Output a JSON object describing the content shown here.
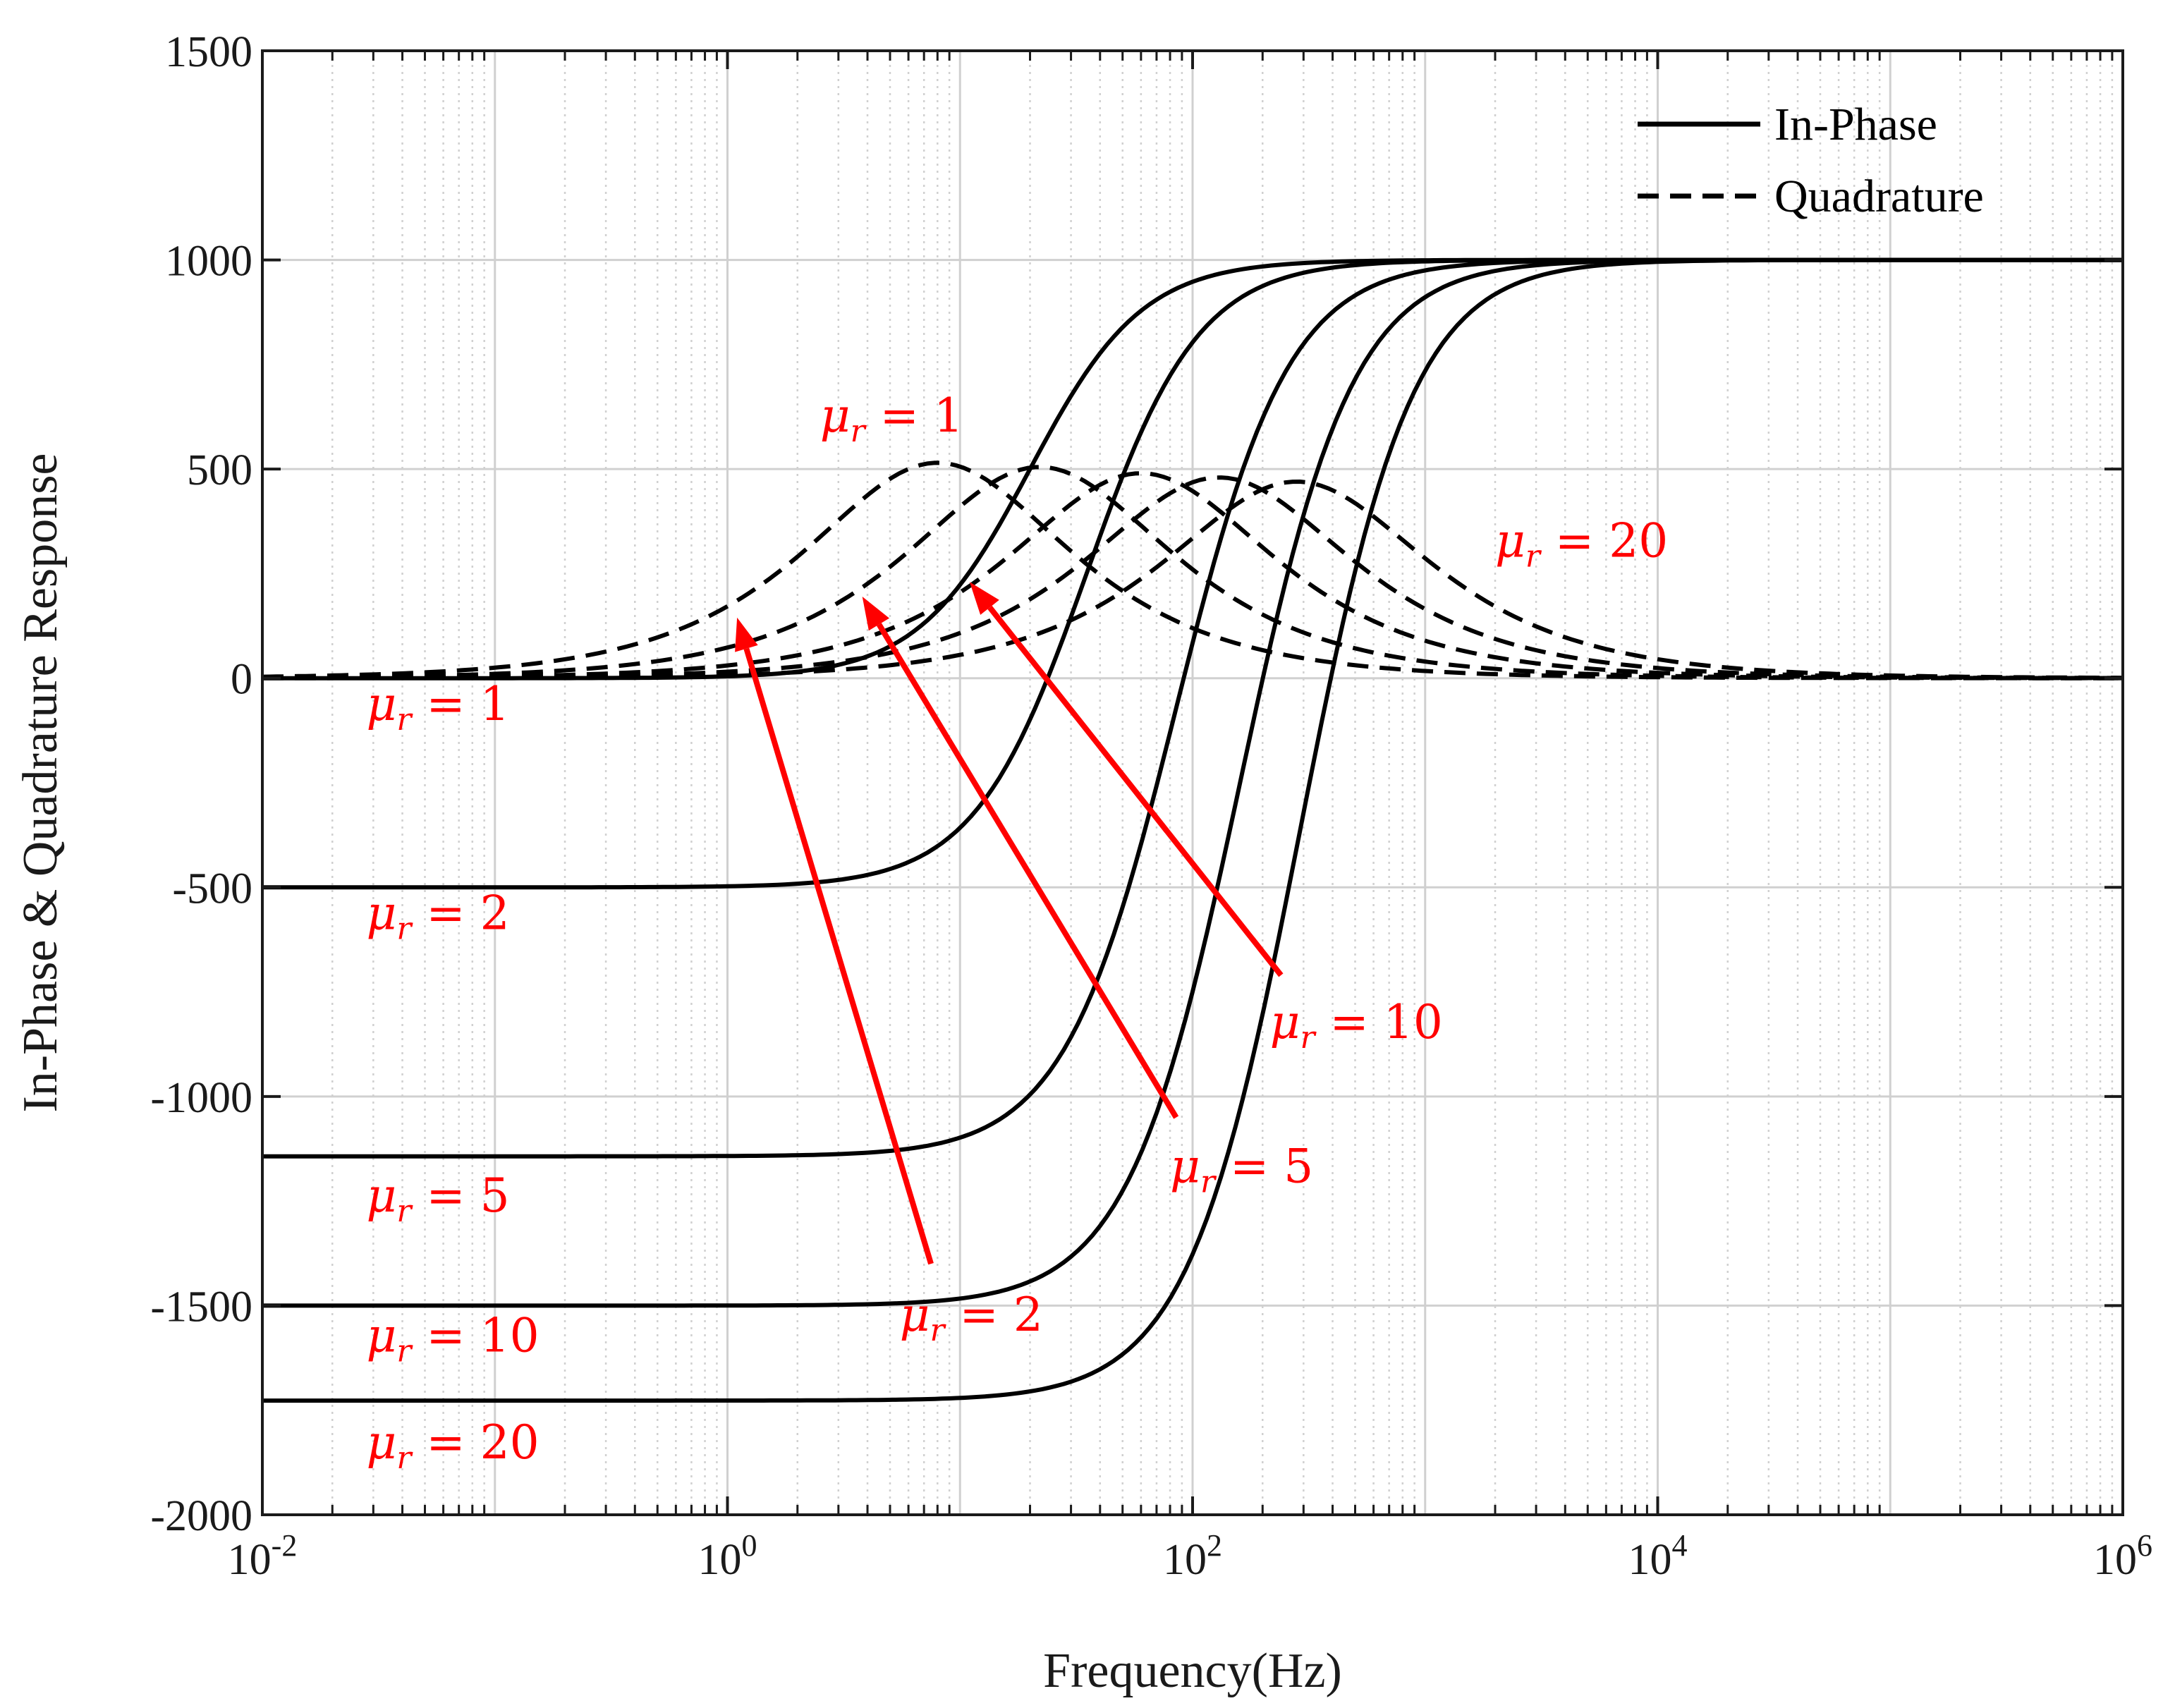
{
  "chart_data": {
    "type": "line",
    "title": "",
    "xlabel": "Frequency(Hz)",
    "ylabel": "In-Phase & Quadrature Response",
    "xscale": "log",
    "xlim": [
      0.01,
      1000000
    ],
    "ylim": [
      -2000,
      1500
    ],
    "xticks": [
      {
        "value": 0.01,
        "base": "10",
        "exp": "-2"
      },
      {
        "value": 1,
        "base": "10",
        "exp": "0"
      },
      {
        "value": 100,
        "base": "10",
        "exp": "2"
      },
      {
        "value": 10000,
        "base": "10",
        "exp": "4"
      },
      {
        "value": 1000000,
        "base": "10",
        "exp": "6"
      }
    ],
    "yticks": [
      {
        "value": 1500,
        "label": "1500"
      },
      {
        "value": 1000,
        "label": "1000"
      },
      {
        "value": 500,
        "label": "500"
      },
      {
        "value": 0,
        "label": "0"
      },
      {
        "value": -500,
        "label": "-500"
      },
      {
        "value": -1000,
        "label": "-1000"
      },
      {
        "value": -1500,
        "label": "-1500"
      },
      {
        "value": -2000,
        "label": "-2000"
      }
    ],
    "grid": true,
    "legend": {
      "position": "top-right",
      "entries": [
        {
          "label": "In-Phase",
          "style": "solid"
        },
        {
          "label": "Quadrature",
          "style": "dashed"
        }
      ]
    },
    "series": [
      {
        "name": "In-Phase, μr = 1",
        "style": "solid",
        "mu_r": 1,
        "low_freq_limit": 0,
        "high_freq_limit": 1000,
        "transition_hz": 20
      },
      {
        "name": "In-Phase, μr = 2",
        "style": "solid",
        "mu_r": 2,
        "low_freq_limit": -500,
        "high_freq_limit": 1000,
        "transition_hz": 35
      },
      {
        "name": "In-Phase, μr = 5",
        "style": "solid",
        "mu_r": 5,
        "low_freq_limit": -1143,
        "high_freq_limit": 1000,
        "transition_hz": 85
      },
      {
        "name": "In-Phase, μr = 10",
        "style": "solid",
        "mu_r": 10,
        "low_freq_limit": -1500,
        "high_freq_limit": 1000,
        "transition_hz": 160
      },
      {
        "name": "In-Phase, μr = 20",
        "style": "solid",
        "mu_r": 20,
        "low_freq_limit": -1727,
        "high_freq_limit": 1000,
        "transition_hz": 290
      },
      {
        "name": "Quadrature, μr = 1",
        "style": "dashed",
        "mu_r": 1,
        "peak_value": 515,
        "peak_freq_hz": 8
      },
      {
        "name": "Quadrature, μr = 2",
        "style": "dashed",
        "mu_r": 2,
        "peak_value": 505,
        "peak_freq_hz": 22
      },
      {
        "name": "Quadrature, μr = 5",
        "style": "dashed",
        "mu_r": 5,
        "peak_value": 490,
        "peak_freq_hz": 60
      },
      {
        "name": "Quadrature, μr = 10",
        "style": "dashed",
        "mu_r": 10,
        "peak_value": 480,
        "peak_freq_hz": 130
      },
      {
        "name": "Quadrature, μr = 20",
        "style": "dashed",
        "mu_r": 20,
        "peak_value": 470,
        "peak_freq_hz": 280
      }
    ],
    "annotations": [
      {
        "id": "q-mu1",
        "symbol": "μ",
        "sub": "r",
        "rest": " = 1",
        "x": 2.5,
        "y": 590
      },
      {
        "id": "q-mu20",
        "symbol": "μ",
        "sub": "r",
        "rest": " = 20",
        "x": 2000,
        "y": 290
      },
      {
        "id": "ip-mu1",
        "symbol": "μ",
        "sub": "r",
        "rest": " = 1",
        "x": 0.028,
        "y": -100
      },
      {
        "id": "ip-mu2",
        "symbol": "μ",
        "sub": "r",
        "rest": " = 2",
        "x": 0.028,
        "y": -600
      },
      {
        "id": "ip-mu5",
        "symbol": "μ",
        "sub": "r",
        "rest": " = 5",
        "x": 0.028,
        "y": -1275
      },
      {
        "id": "ip-mu10",
        "symbol": "μ",
        "sub": "r",
        "rest": " = 10",
        "x": 0.028,
        "y": -1610
      },
      {
        "id": "ip-mu20",
        "symbol": "μ",
        "sub": "r",
        "rest": " = 20",
        "x": 0.028,
        "y": -1865
      },
      {
        "id": "arrow-mu10",
        "symbol": "μ",
        "sub": "r",
        "rest": " = 10",
        "x": 215,
        "y": -860
      },
      {
        "id": "arrow-mu5",
        "symbol": "μ",
        "sub": "r",
        "rest": " = 5",
        "x": 80,
        "y": -1205
      },
      {
        "id": "arrow-mu2",
        "symbol": "μ",
        "sub": "r",
        "rest": " = 2",
        "x": 5.5,
        "y": -1560
      }
    ],
    "arrows": [
      {
        "label": "μr = 2",
        "from": [
          7.5,
          -1400
        ],
        "to": [
          1.1,
          145
        ]
      },
      {
        "label": "μr = 5",
        "from": [
          85,
          -1050
        ],
        "to": [
          3.8,
          195
        ]
      },
      {
        "label": "μr = 10",
        "from": [
          240,
          -710
        ],
        "to": [
          11,
          230
        ]
      }
    ],
    "colors": {
      "curves": "#000000",
      "annotations": "#ff0000",
      "grid": "#d0d0d0"
    }
  }
}
